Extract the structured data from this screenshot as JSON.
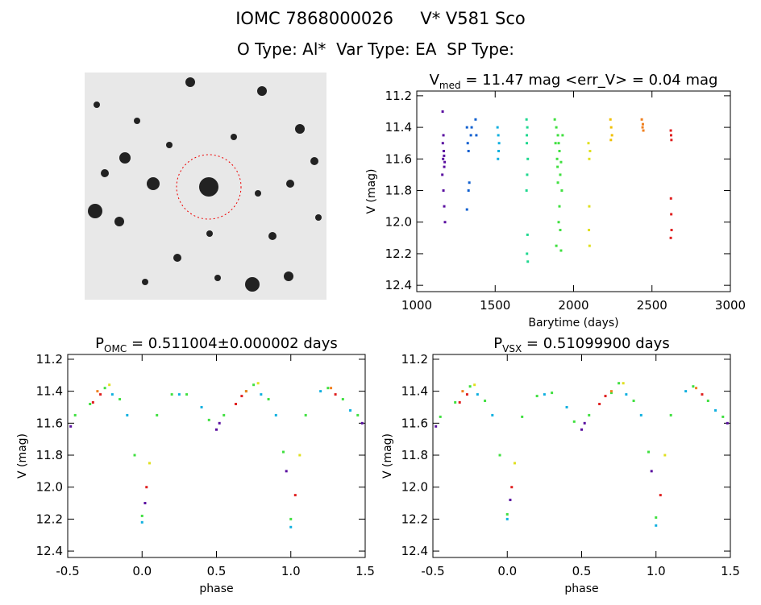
{
  "header": {
    "title": "IOMC 7868000026     V* V581 Sco",
    "subtitle": "O Type: Al*  Var Type: EA  SP Type:"
  },
  "chart_data": [
    {
      "type": "scatter",
      "title": {
        "main": "V",
        "sub": "med",
        "rest": " = 11.47 mag <err_V> = 0.04 mag"
      },
      "x_label": "Barytime (days)",
      "y_label": "V (mag)",
      "xlim": [
        1000,
        3000
      ],
      "xticks": [
        1000,
        1500,
        2000,
        2500,
        3000
      ],
      "ylim": [
        12.44,
        11.17
      ],
      "yticks": [
        11.2,
        11.4,
        11.6,
        11.8,
        {
          "value": 12,
          "label": "12.0"
        },
        12.2,
        12.4
      ],
      "series": [
        {
          "color": "#5a10a0",
          "x": [
            1165,
            1170,
            1172,
            1168,
            1175,
            1163,
            1178,
            1170,
            1175,
            1180,
            1166,
            1174
          ],
          "y": [
            11.3,
            11.45,
            11.55,
            11.6,
            11.65,
            11.7,
            11.62,
            11.8,
            11.9,
            12.0,
            11.5,
            11.58
          ]
        },
        {
          "color": "#1060d0",
          "x": [
            1320,
            1325,
            1330,
            1335,
            1320,
            1345,
            1350,
            1375,
            1380,
            1330
          ],
          "y": [
            11.4,
            11.5,
            11.55,
            11.75,
            11.92,
            11.45,
            11.4,
            11.35,
            11.45,
            11.8
          ]
        },
        {
          "color": "#10b0e0",
          "x": [
            1515,
            1520,
            1525,
            1522,
            1518
          ],
          "y": [
            11.4,
            11.45,
            11.5,
            11.55,
            11.6
          ]
        },
        {
          "color": "#20d890",
          "x": [
            1700,
            1705,
            1702,
            1708,
            1704,
            1700,
            1706,
            1703,
            1708,
            1702
          ],
          "y": [
            11.35,
            11.4,
            11.5,
            11.6,
            11.7,
            11.8,
            12.08,
            12.2,
            12.25,
            11.45
          ]
        },
        {
          "color": "#40e040",
          "x": [
            1880,
            1890,
            1900,
            1905,
            1910,
            1895,
            1920,
            1915,
            1900,
            1925,
            1910,
            1905,
            1915,
            1890,
            1920,
            1930,
            1885,
            1898
          ],
          "y": [
            11.35,
            11.4,
            11.45,
            11.5,
            11.55,
            11.6,
            11.62,
            11.7,
            11.75,
            11.8,
            11.9,
            12.0,
            12.05,
            12.15,
            12.18,
            11.45,
            11.5,
            11.65
          ]
        },
        {
          "color": "#e0e020",
          "x": [
            2095,
            2100,
            2105,
            2100,
            2098,
            2102
          ],
          "y": [
            11.5,
            11.6,
            11.55,
            11.9,
            12.05,
            12.15
          ]
        },
        {
          "color": "#f0c000",
          "x": [
            2235,
            2240,
            2245,
            2238
          ],
          "y": [
            11.35,
            11.4,
            11.45,
            11.48
          ]
        },
        {
          "color": "#f08020",
          "x": [
            2435,
            2440,
            2445,
            2442
          ],
          "y": [
            11.35,
            11.4,
            11.42,
            11.38
          ]
        },
        {
          "color": "#e02020",
          "x": [
            2620,
            2622,
            2624,
            2621,
            2623,
            2625,
            2620
          ],
          "y": [
            11.42,
            11.45,
            11.48,
            11.85,
            11.95,
            12.05,
            12.1
          ]
        }
      ]
    },
    {
      "type": "scatter",
      "title": {
        "main": "P",
        "sub": "OMC",
        "rest": " = 0.511004±0.000002 days"
      },
      "x_label": "phase",
      "y_label": "V (mag)",
      "xlim": [
        -0.5,
        1.5
      ],
      "xticks": [
        -0.5,
        {
          "value": 0,
          "label": "0.0"
        },
        0.5,
        {
          "value": 1,
          "label": "1.0"
        },
        1.5
      ],
      "ylim": [
        12.44,
        11.17
      ],
      "yticks": [
        11.2,
        11.4,
        11.6,
        11.8,
        {
          "value": 12,
          "label": "12.0"
        },
        12.2,
        12.4
      ],
      "series": [
        {
          "color": "#40e040",
          "x": [
            -0.45,
            -0.35,
            -0.25,
            -0.15,
            -0.05,
            0.0,
            0.1,
            0.2,
            0.3,
            0.45,
            0.55,
            0.7,
            0.75,
            0.85,
            0.95,
            1.0,
            1.1,
            1.25,
            1.35,
            1.45
          ],
          "y": [
            11.55,
            11.48,
            11.38,
            11.45,
            11.8,
            12.18,
            11.55,
            11.42,
            11.42,
            11.58,
            11.55,
            11.4,
            11.36,
            11.45,
            11.78,
            12.2,
            11.55,
            11.38,
            11.45,
            11.55
          ]
        },
        {
          "color": "#10b0e0",
          "x": [
            -0.2,
            -0.1,
            0.25,
            0.4,
            0.8,
            0.9,
            1.2,
            1.4,
            0.0,
            1.0
          ],
          "y": [
            11.42,
            11.55,
            11.42,
            11.5,
            11.42,
            11.55,
            11.4,
            11.52,
            12.22,
            12.25
          ]
        },
        {
          "color": "#5a10a0",
          "x": [
            -0.48,
            0.5,
            0.02,
            0.97,
            1.48,
            0.52
          ],
          "y": [
            11.62,
            11.64,
            12.1,
            11.9,
            11.6,
            11.6
          ]
        },
        {
          "color": "#e02020",
          "x": [
            -0.28,
            -0.33,
            0.03,
            0.63,
            0.67,
            1.03,
            1.3
          ],
          "y": [
            11.42,
            11.47,
            12.0,
            11.48,
            11.43,
            12.05,
            11.42
          ]
        },
        {
          "color": "#e0e020",
          "x": [
            -0.22,
            0.05,
            0.78,
            1.06
          ],
          "y": [
            11.36,
            11.85,
            11.35,
            11.8
          ]
        },
        {
          "color": "#f08020",
          "x": [
            -0.3,
            0.7,
            1.27
          ],
          "y": [
            11.4,
            11.4,
            11.38
          ]
        }
      ]
    },
    {
      "type": "scatter",
      "title": {
        "main": "P",
        "sub": "VSX",
        "rest": " = 0.51099900 days"
      },
      "x_label": "phase",
      "y_label": "V (mag)",
      "xlim": [
        -0.5,
        1.5
      ],
      "xticks": [
        -0.5,
        {
          "value": 0,
          "label": "0.0"
        },
        0.5,
        {
          "value": 1,
          "label": "1.0"
        },
        1.5
      ],
      "ylim": [
        12.44,
        11.17
      ],
      "yticks": [
        11.2,
        11.4,
        11.6,
        11.8,
        {
          "value": 12,
          "label": "12.0"
        },
        12.2,
        12.4
      ],
      "series": [
        {
          "color": "#40e040",
          "x": [
            -0.45,
            -0.35,
            -0.25,
            -0.15,
            -0.05,
            0.0,
            0.1,
            0.2,
            0.3,
            0.45,
            0.55,
            0.7,
            0.75,
            0.85,
            0.95,
            1.0,
            1.1,
            1.25,
            1.35,
            1.45
          ],
          "y": [
            11.56,
            11.47,
            11.37,
            11.46,
            11.8,
            12.17,
            11.56,
            11.43,
            11.41,
            11.59,
            11.55,
            11.41,
            11.35,
            11.46,
            11.78,
            12.19,
            11.55,
            11.37,
            11.46,
            11.56
          ]
        },
        {
          "color": "#10b0e0",
          "x": [
            -0.2,
            -0.1,
            0.25,
            0.4,
            0.8,
            0.9,
            1.2,
            1.4,
            0.0,
            1.0
          ],
          "y": [
            11.42,
            11.55,
            11.42,
            11.5,
            11.42,
            11.55,
            11.4,
            11.52,
            12.2,
            12.24
          ]
        },
        {
          "color": "#5a10a0",
          "x": [
            -0.48,
            0.5,
            0.02,
            0.97,
            1.48,
            0.52
          ],
          "y": [
            11.62,
            11.64,
            12.08,
            11.9,
            11.6,
            11.6
          ]
        },
        {
          "color": "#e02020",
          "x": [
            -0.27,
            -0.32,
            0.03,
            0.62,
            0.66,
            1.03,
            1.31
          ],
          "y": [
            11.42,
            11.47,
            12.0,
            11.48,
            11.43,
            12.05,
            11.42
          ]
        },
        {
          "color": "#e0e020",
          "x": [
            -0.22,
            0.05,
            0.78,
            1.06
          ],
          "y": [
            11.36,
            11.85,
            11.35,
            11.8
          ]
        },
        {
          "color": "#f08020",
          "x": [
            -0.3,
            0.7,
            1.27
          ],
          "y": [
            11.4,
            11.4,
            11.38
          ]
        }
      ]
    }
  ]
}
